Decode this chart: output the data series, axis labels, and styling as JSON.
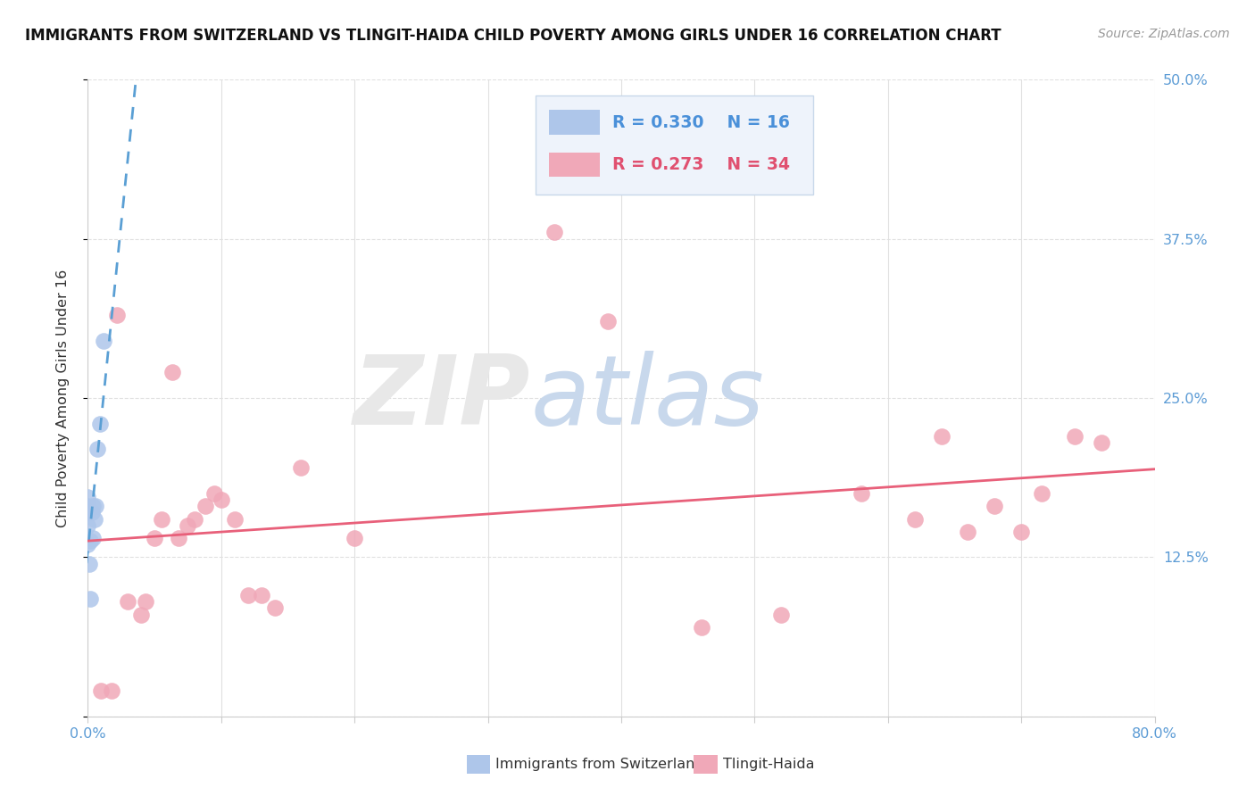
{
  "title": "IMMIGRANTS FROM SWITZERLAND VS TLINGIT-HAIDA CHILD POVERTY AMONG GIRLS UNDER 16 CORRELATION CHART",
  "source": "Source: ZipAtlas.com",
  "ylabel": "Child Poverty Among Girls Under 16",
  "xlim": [
    0.0,
    0.8
  ],
  "ylim": [
    0.0,
    0.5
  ],
  "xticks": [
    0.0,
    0.1,
    0.2,
    0.3,
    0.4,
    0.5,
    0.6,
    0.7,
    0.8
  ],
  "yticks": [
    0.0,
    0.125,
    0.25,
    0.375,
    0.5
  ],
  "ytick_labels": [
    "",
    "12.5%",
    "25.0%",
    "37.5%",
    "50.0%"
  ],
  "swiss_color": "#aec6ea",
  "tlingit_color": "#f0a8b8",
  "swiss_line_color": "#5a9fd4",
  "tlingit_line_color": "#e8607a",
  "swiss_R": 0.33,
  "swiss_N": 16,
  "tlingit_R": 0.273,
  "tlingit_N": 34,
  "swiss_points_x": [
    0.0,
    0.0,
    0.0,
    0.0,
    0.0,
    0.001,
    0.002,
    0.002,
    0.003,
    0.004,
    0.004,
    0.005,
    0.006,
    0.007,
    0.009,
    0.012
  ],
  "swiss_points_y": [
    0.135,
    0.15,
    0.16,
    0.165,
    0.172,
    0.12,
    0.092,
    0.138,
    0.16,
    0.14,
    0.165,
    0.155,
    0.165,
    0.21,
    0.23,
    0.295
  ],
  "tlingit_points_x": [
    0.01,
    0.018,
    0.022,
    0.03,
    0.04,
    0.043,
    0.05,
    0.055,
    0.063,
    0.068,
    0.075,
    0.08,
    0.088,
    0.095,
    0.1,
    0.11,
    0.12,
    0.13,
    0.14,
    0.16,
    0.2,
    0.35,
    0.39,
    0.46,
    0.52,
    0.58,
    0.62,
    0.64,
    0.66,
    0.68,
    0.7,
    0.715,
    0.74,
    0.76
  ],
  "tlingit_points_y": [
    0.02,
    0.02,
    0.315,
    0.09,
    0.08,
    0.09,
    0.14,
    0.155,
    0.27,
    0.14,
    0.15,
    0.155,
    0.165,
    0.175,
    0.17,
    0.155,
    0.095,
    0.095,
    0.085,
    0.195,
    0.14,
    0.38,
    0.31,
    0.07,
    0.08,
    0.175,
    0.155,
    0.22,
    0.145,
    0.165,
    0.145,
    0.175,
    0.22,
    0.215
  ],
  "grid_color": "#e0e0e0",
  "tick_color": "#5b9bd5",
  "legend_bg": "#eef3fb",
  "legend_border": "#c8d8ea"
}
